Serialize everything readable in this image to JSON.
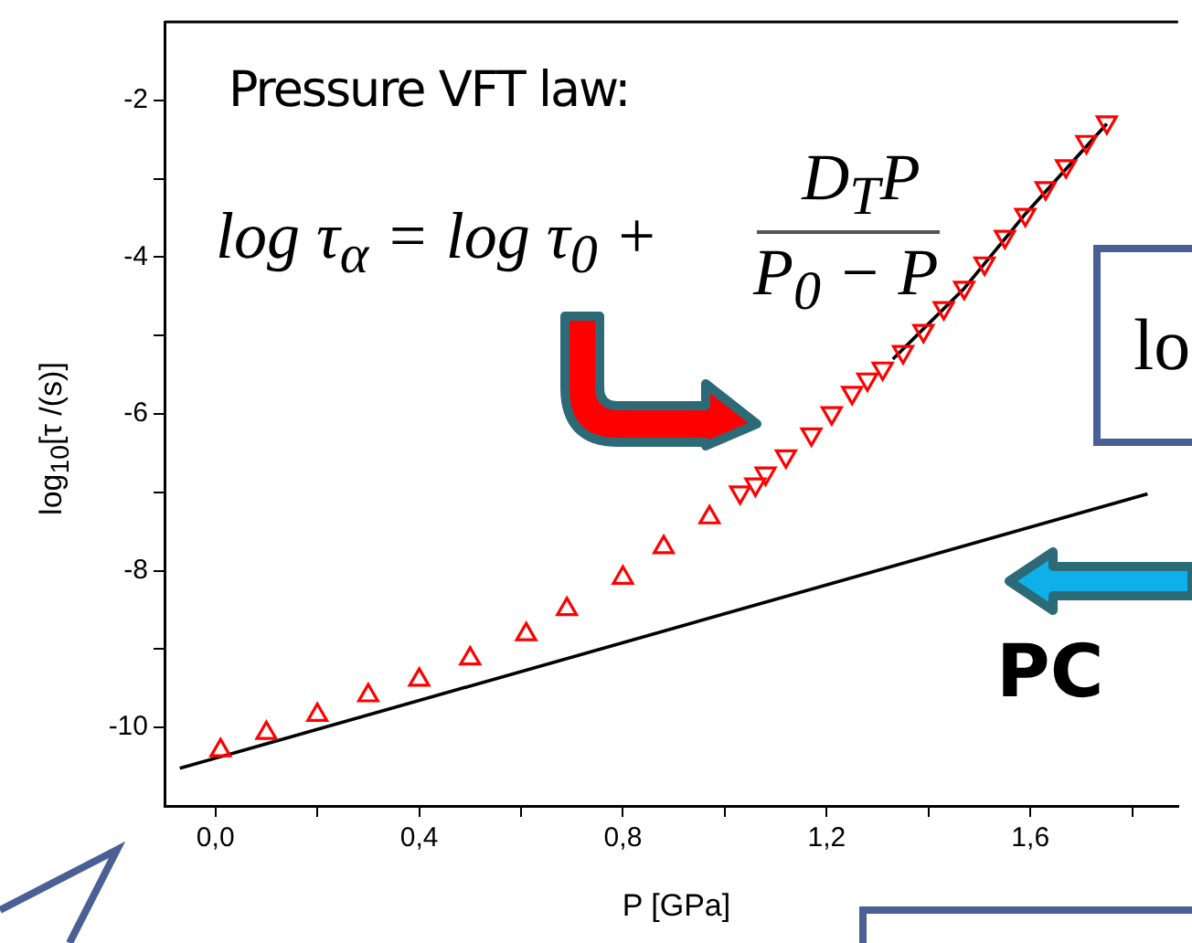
{
  "chart_data": {
    "type": "scatter",
    "xlabel": "P [GPa]",
    "ylabel": "log$_{10}$[τ /(s)]",
    "xlim": [
      -0.1,
      1.89
    ],
    "ylim": [
      -11,
      -1
    ],
    "xticks": [
      {
        "value": 0,
        "label": "0,0"
      },
      {
        "value": 0.2,
        "label": null
      },
      {
        "value": 0.4,
        "label": "0,4"
      },
      {
        "value": 0.6,
        "label": null
      },
      {
        "value": 0.8,
        "label": "0,8"
      },
      {
        "value": 1.0,
        "label": null
      },
      {
        "value": 1.2,
        "label": "1,2"
      },
      {
        "value": 1.4,
        "label": null
      },
      {
        "value": 1.6,
        "label": "1,6"
      },
      {
        "value": 1.8,
        "label": null
      }
    ],
    "yticks": [
      {
        "value": -2,
        "label": "-2"
      },
      {
        "value": -3,
        "label": null
      },
      {
        "value": -4,
        "label": "-4"
      },
      {
        "value": -5,
        "label": null
      },
      {
        "value": -6,
        "label": "-6"
      },
      {
        "value": -7,
        "label": null
      },
      {
        "value": -8,
        "label": "-8"
      },
      {
        "value": -9,
        "label": null
      },
      {
        "value": -10,
        "label": "-10"
      }
    ],
    "grid": false,
    "legend": false,
    "series": [
      {
        "marker": "triangle",
        "color": "#ff0000",
        "x": [
          0.01,
          0.1,
          0.2,
          0.3,
          0.4,
          0.5,
          0.61,
          0.69,
          0.8,
          0.88,
          0.97
        ],
        "values": [
          -10.29,
          -10.07,
          -9.84,
          -9.59,
          -9.39,
          -9.12,
          -8.81,
          -8.49,
          -8.09,
          -7.7,
          -7.32
        ]
      },
      {
        "marker": "triangle-down",
        "color": "#ff0000",
        "x": [
          1.03,
          1.06,
          1.08,
          1.12,
          1.17,
          1.21,
          1.25,
          1.28,
          1.31,
          1.35,
          1.39,
          1.43,
          1.47,
          1.51,
          1.55,
          1.59,
          1.63,
          1.67,
          1.71,
          1.75
        ],
        "values": [
          -7.0,
          -6.9,
          -6.76,
          -6.54,
          -6.26,
          -5.99,
          -5.73,
          -5.56,
          -5.42,
          -5.21,
          -4.94,
          -4.65,
          -4.39,
          -4.08,
          -3.74,
          -3.46,
          -3.12,
          -2.84,
          -2.53,
          -2.28
        ]
      },
      {
        "type": "line",
        "marker": "none",
        "line_style": "solid",
        "color": "#000000",
        "x": [
          1.33,
          1.47,
          1.59,
          1.75
        ],
        "values": [
          -5.3,
          -4.4,
          -3.45,
          -2.3
        ]
      },
      {
        "type": "line",
        "marker": "none",
        "line_style": "solid",
        "color": "#000000",
        "x": [
          -0.07,
          1.83
        ],
        "values": [
          -10.52,
          -7.02
        ]
      }
    ],
    "annotations": [
      "Pressure VFT law:",
      "log τ$_{α}$ = log τ$_{0}$ +",
      "D$_{T}$P",
      "P$_{0}$ − P",
      "PC",
      "lo"
    ]
  }
}
